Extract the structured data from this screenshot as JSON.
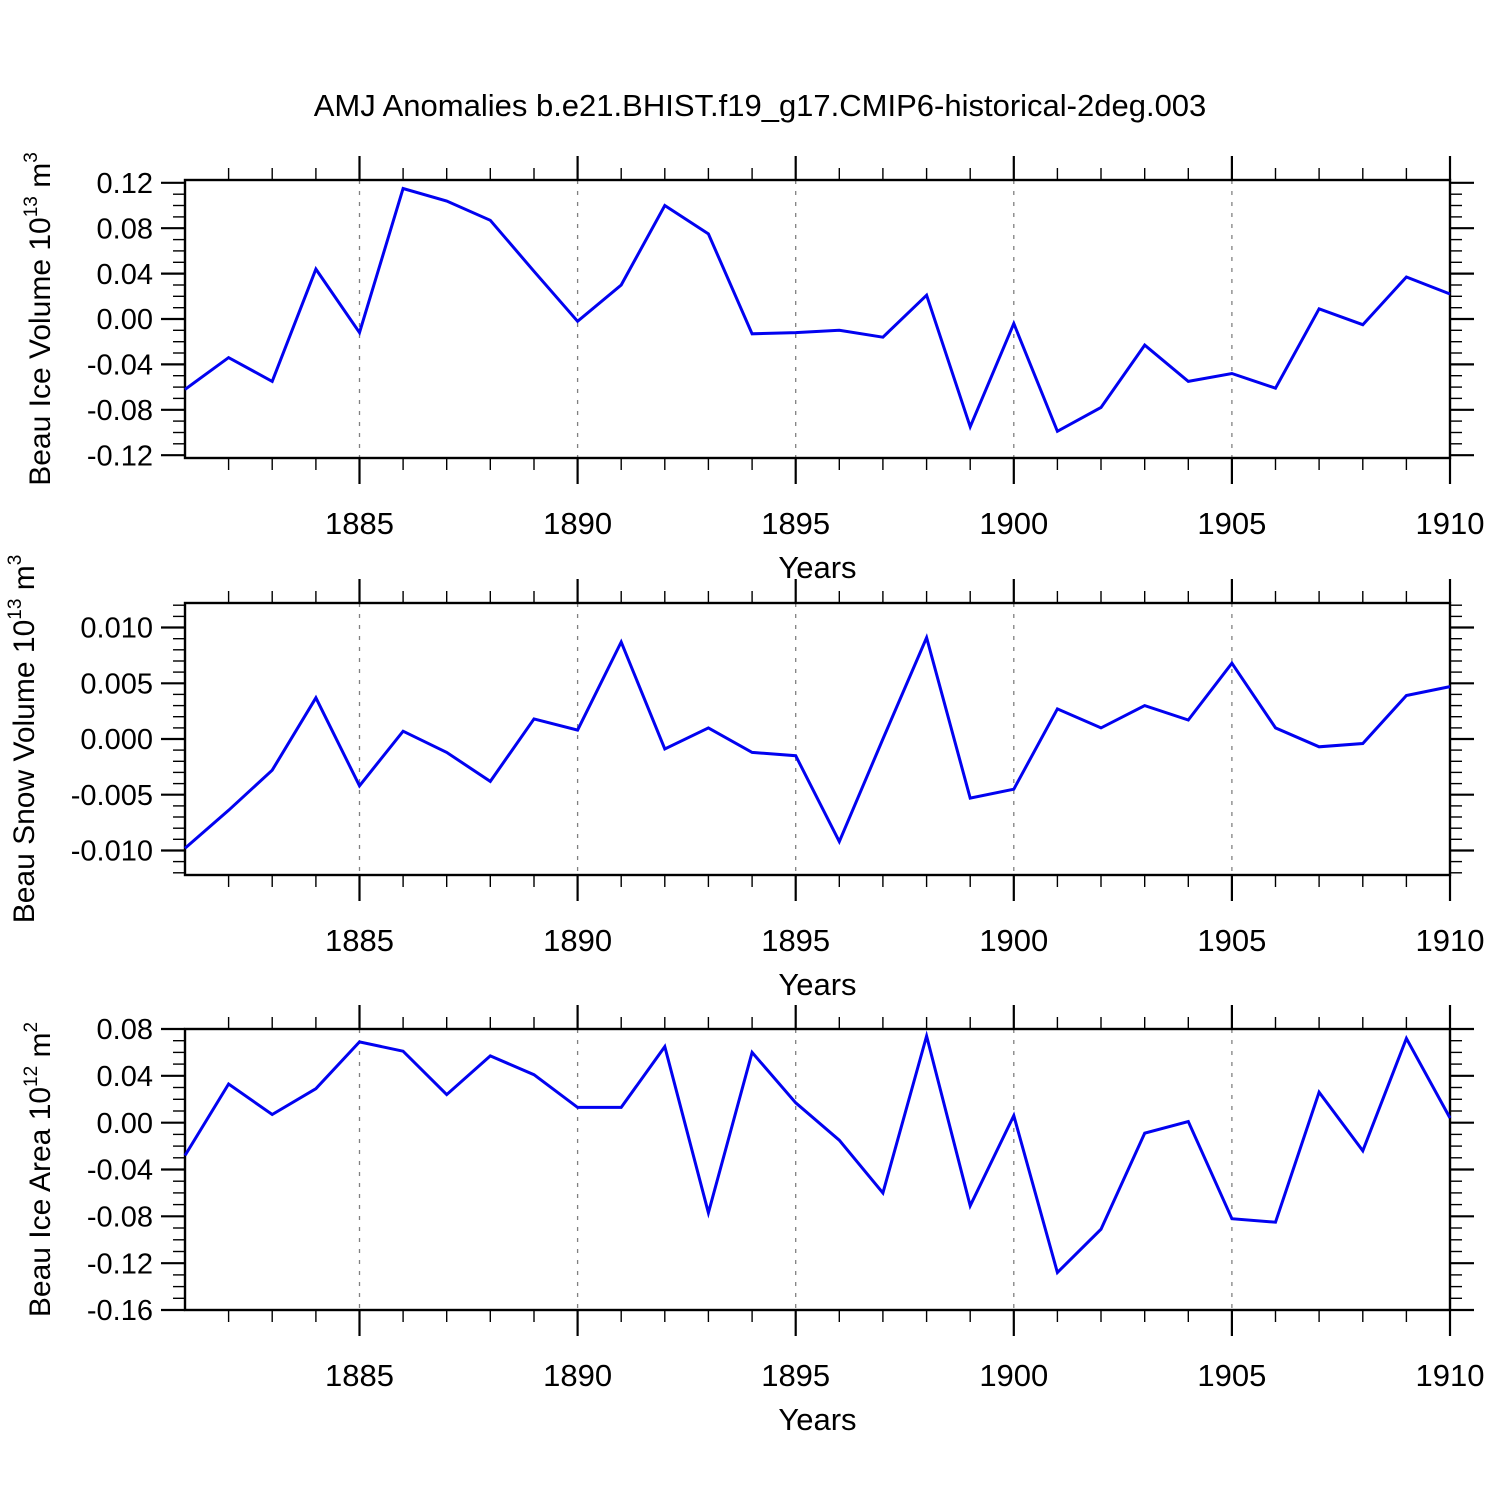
{
  "title": "AMJ Anomalies b.e21.BHIST.f19_g17.CMIP6-historical-2deg.003",
  "style": {
    "background": "#ffffff",
    "line_color": "#0202f0",
    "axis_color": "#000000",
    "grid_color": "#808080",
    "text_color": "#000000"
  },
  "chart_data": [
    {
      "type": "line",
      "id": "beau-ice-volume",
      "ylabel_text": "Beau Ice Volume 10^13 m^3",
      "ylabel_parts": [
        {
          "t": "Beau Ice Volume 10",
          "sup": false
        },
        {
          "t": "13",
          "sup": true
        },
        {
          "t": " m",
          "sup": false
        },
        {
          "t": "3",
          "sup": true
        }
      ],
      "xlabel": "Years",
      "x": [
        1881,
        1882,
        1883,
        1884,
        1885,
        1886,
        1887,
        1888,
        1889,
        1890,
        1891,
        1892,
        1893,
        1894,
        1895,
        1896,
        1897,
        1898,
        1899,
        1900,
        1901,
        1902,
        1903,
        1904,
        1905,
        1906,
        1907,
        1908,
        1909,
        1910
      ],
      "values": [
        -0.062,
        -0.034,
        -0.055,
        0.044,
        -0.012,
        0.115,
        0.104,
        0.087,
        0.042,
        -0.002,
        0.03,
        0.1,
        0.075,
        -0.013,
        -0.012,
        -0.01,
        -0.016,
        0.021,
        -0.095,
        -0.004,
        -0.099,
        -0.078,
        -0.023,
        -0.055,
        -0.048,
        -0.061,
        0.009,
        -0.005,
        0.037,
        0.022
      ],
      "xlim": [
        1881,
        1910
      ],
      "ylim": [
        -0.1225,
        0.1225
      ],
      "xticks_major": [
        1885,
        1890,
        1895,
        1900,
        1905,
        1910
      ],
      "xtick_minor_step": 1,
      "yticks_major": [
        0.12,
        0.08,
        0.04,
        0.0,
        -0.04,
        -0.08,
        -0.12
      ],
      "ytick_labels": [
        "0.12",
        "0.08",
        "0.04",
        "0.00",
        "-0.04",
        "-0.08",
        "-0.12"
      ],
      "ytick_minor_step": 0.01,
      "gridlines_x": [
        1885,
        1890,
        1895,
        1900,
        1905
      ],
      "grid_style": "dashed-vertical",
      "legend": "none"
    },
    {
      "type": "line",
      "id": "beau-snow-volume",
      "ylabel_text": "Beau Snow Volume 10^13 m^3",
      "ylabel_parts": [
        {
          "t": "Beau Snow Volume 10",
          "sup": false
        },
        {
          "t": "13",
          "sup": true
        },
        {
          "t": " m",
          "sup": false
        },
        {
          "t": "3",
          "sup": true
        }
      ],
      "xlabel": "Years",
      "x": [
        1881,
        1882,
        1883,
        1884,
        1885,
        1886,
        1887,
        1888,
        1889,
        1890,
        1891,
        1892,
        1893,
        1894,
        1895,
        1896,
        1897,
        1898,
        1899,
        1900,
        1901,
        1902,
        1903,
        1904,
        1905,
        1906,
        1907,
        1908,
        1909,
        1910
      ],
      "values": [
        -0.0098,
        -0.0064,
        -0.0028,
        0.0037,
        -0.0042,
        0.0007,
        -0.0012,
        -0.0038,
        0.0018,
        0.0008,
        0.0087,
        -0.0009,
        0.001,
        -0.0012,
        -0.0015,
        -0.0092,
        0.0,
        0.0091,
        -0.0053,
        -0.0045,
        0.0027,
        0.001,
        0.003,
        0.0017,
        0.0068,
        0.001,
        -0.0007,
        -0.0004,
        0.0039,
        0.0047
      ],
      "xlim": [
        1881,
        1910
      ],
      "ylim": [
        -0.0122,
        0.0122
      ],
      "xticks_major": [
        1885,
        1890,
        1895,
        1900,
        1905,
        1910
      ],
      "xtick_minor_step": 1,
      "yticks_major": [
        0.01,
        0.005,
        0.0,
        -0.005,
        -0.01
      ],
      "ytick_labels": [
        "0.010",
        "0.005",
        "0.000",
        "-0.005",
        "-0.010"
      ],
      "ytick_minor_step": 0.001,
      "gridlines_x": [
        1885,
        1890,
        1895,
        1900,
        1905
      ],
      "grid_style": "dashed-vertical",
      "legend": "none"
    },
    {
      "type": "line",
      "id": "beau-ice-area",
      "ylabel_text": "Beau Ice Area 10^12 m^2",
      "ylabel_parts": [
        {
          "t": "Beau Ice Area 10",
          "sup": false
        },
        {
          "t": "12",
          "sup": true
        },
        {
          "t": " m",
          "sup": false
        },
        {
          "t": "2",
          "sup": true
        }
      ],
      "xlabel": "Years",
      "x": [
        1881,
        1882,
        1883,
        1884,
        1885,
        1886,
        1887,
        1888,
        1889,
        1890,
        1891,
        1892,
        1893,
        1894,
        1895,
        1896,
        1897,
        1898,
        1899,
        1900,
        1901,
        1902,
        1903,
        1904,
        1905,
        1906,
        1907,
        1908,
        1909,
        1910
      ],
      "values": [
        -0.028,
        0.033,
        0.007,
        0.029,
        0.069,
        0.061,
        0.024,
        0.057,
        0.041,
        0.013,
        0.013,
        0.065,
        -0.077,
        0.06,
        0.017,
        -0.015,
        -0.06,
        0.074,
        -0.071,
        0.006,
        -0.128,
        -0.091,
        -0.009,
        0.001,
        -0.082,
        -0.085,
        0.026,
        -0.024,
        0.072,
        0.004
      ],
      "xlim": [
        1881,
        1910
      ],
      "ylim": [
        -0.16,
        0.08
      ],
      "xticks_major": [
        1885,
        1890,
        1895,
        1900,
        1905,
        1910
      ],
      "xtick_minor_step": 1,
      "yticks_major": [
        0.08,
        0.04,
        0.0,
        -0.04,
        -0.08,
        -0.12,
        -0.16
      ],
      "ytick_labels": [
        "0.08",
        "0.04",
        "0.00",
        "-0.04",
        "-0.08",
        "-0.12",
        "-0.16"
      ],
      "ytick_minor_step": 0.01,
      "gridlines_x": [
        1885,
        1890,
        1895,
        1900,
        1905
      ],
      "grid_style": "dashed-vertical",
      "legend": "none"
    }
  ]
}
